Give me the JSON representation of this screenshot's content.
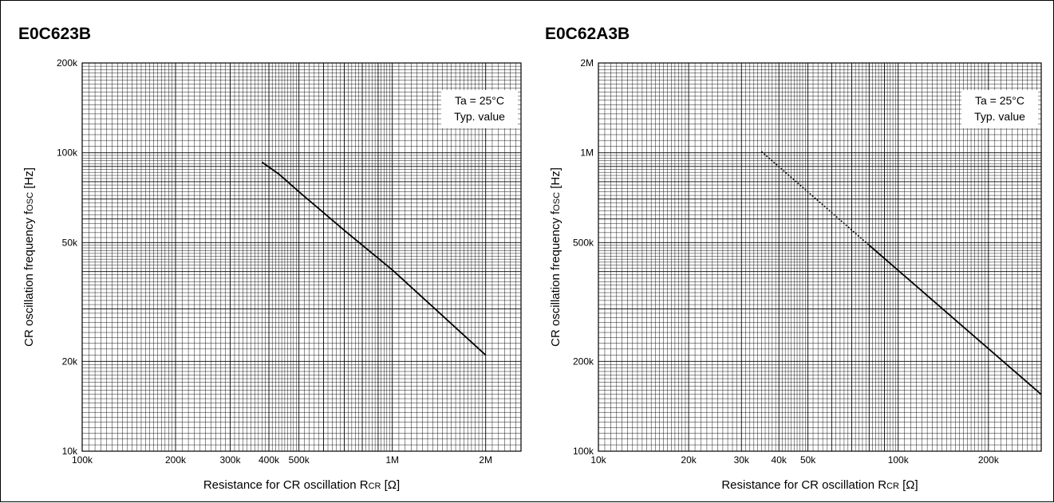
{
  "chart_data": [
    {
      "type": "line",
      "title": "E0C623B",
      "xlabel": "Resistance for CR oscillation R",
      "xlabel_sub": "CR",
      "xlabel_unit": " [Ω]",
      "ylabel": "CR oscillation frequency f",
      "ylabel_sub": "OSC",
      "ylabel_unit": " [Hz]",
      "x_scale": "log",
      "y_scale": "log",
      "xlim": [
        100000,
        2600000
      ],
      "ylim": [
        10000,
        200000
      ],
      "x_ticks": [
        {
          "value": 100000,
          "label": "100k"
        },
        {
          "value": 200000,
          "label": "200k"
        },
        {
          "value": 300000,
          "label": "300k"
        },
        {
          "value": 400000,
          "label": "400k"
        },
        {
          "value": 500000,
          "label": "500k"
        },
        {
          "value": 1000000,
          "label": "1M"
        },
        {
          "value": 2000000,
          "label": "2M"
        }
      ],
      "y_ticks": [
        {
          "value": 10000,
          "label": "10k"
        },
        {
          "value": 20000,
          "label": "20k"
        },
        {
          "value": 50000,
          "label": "50k"
        },
        {
          "value": 100000,
          "label": "100k"
        },
        {
          "value": 200000,
          "label": "200k"
        }
      ],
      "annotation": [
        "Ta = 25°C",
        "Typ. value"
      ],
      "grid": true,
      "series": [
        {
          "style": "solid",
          "points": [
            [
              380000,
              93000
            ],
            [
              430000,
              85000
            ],
            [
              500000,
              74000
            ],
            [
              700000,
              55000
            ],
            [
              1000000,
              40500
            ],
            [
              2000000,
              21000
            ]
          ]
        }
      ]
    },
    {
      "type": "line",
      "title": "E0C62A3B",
      "xlabel": "Resistance for CR oscillation R",
      "xlabel_sub": "CR",
      "xlabel_unit": " [Ω]",
      "ylabel": "CR oscillation frequency f",
      "ylabel_sub": "OSC",
      "ylabel_unit": " [Hz]",
      "x_scale": "log",
      "y_scale": "log",
      "xlim": [
        10000,
        300000
      ],
      "ylim": [
        100000,
        2000000
      ],
      "x_ticks": [
        {
          "value": 10000,
          "label": "10k"
        },
        {
          "value": 20000,
          "label": "20k"
        },
        {
          "value": 30000,
          "label": "30k"
        },
        {
          "value": 40000,
          "label": "40k"
        },
        {
          "value": 50000,
          "label": "50k"
        },
        {
          "value": 100000,
          "label": "100k"
        },
        {
          "value": 200000,
          "label": "200k"
        }
      ],
      "y_ticks": [
        {
          "value": 100000,
          "label": "100k"
        },
        {
          "value": 200000,
          "label": "200k"
        },
        {
          "value": 500000,
          "label": "500k"
        },
        {
          "value": 1000000,
          "label": "1M"
        },
        {
          "value": 2000000,
          "label": "2M"
        }
      ],
      "annotation": [
        "Ta = 25°C",
        "Typ. value"
      ],
      "grid": true,
      "series": [
        {
          "style": "dotted",
          "points": [
            [
              35000,
              1010000
            ],
            [
              80000,
              490000
            ]
          ]
        },
        {
          "style": "solid",
          "points": [
            [
              80000,
              490000
            ],
            [
              300000,
              155000
            ]
          ]
        }
      ]
    }
  ]
}
